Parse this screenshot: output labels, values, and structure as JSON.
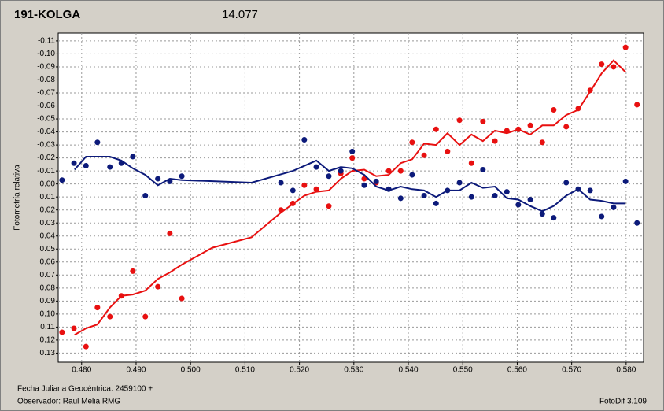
{
  "chart_data": {
    "type": "scatter",
    "title": "191-KOLGA",
    "title_color": "#e81818",
    "subtitle": "14.077",
    "subtitle_color": "#1a237e",
    "ylabel": "Fotometría relativa",
    "annotations": [
      "Fecha Juliana Geocéntrica: 2459100 +",
      "Observador: Raul Melia RMG",
      "FotoDif 3.109"
    ],
    "grid": true,
    "xlim": [
      0.4757,
      0.5832
    ],
    "ylim": [
      0.137,
      -0.116
    ],
    "xticks": [
      {
        "value": 0.48,
        "label": "0.480"
      },
      {
        "value": 0.49,
        "label": "0.490"
      },
      {
        "value": 0.5,
        "label": "0.500"
      },
      {
        "value": 0.51,
        "label": "0.510"
      },
      {
        "value": 0.52,
        "label": "0.520"
      },
      {
        "value": 0.53,
        "label": "0.530"
      },
      {
        "value": 0.54,
        "label": "0.540"
      },
      {
        "value": 0.55,
        "label": "0.550"
      },
      {
        "value": 0.56,
        "label": "0.560"
      },
      {
        "value": 0.57,
        "label": "0.570"
      },
      {
        "value": 0.58,
        "label": "0.580"
      }
    ],
    "yticks": [
      {
        "value": -0.11,
        "label": "-0.11"
      },
      {
        "value": -0.1,
        "label": "-0.10"
      },
      {
        "value": -0.09,
        "label": "-0.09"
      },
      {
        "value": -0.08,
        "label": "-0.08"
      },
      {
        "value": -0.07,
        "label": "-0.07"
      },
      {
        "value": -0.06,
        "label": "-0.06"
      },
      {
        "value": -0.05,
        "label": "-0.05"
      },
      {
        "value": -0.04,
        "label": "-0.04"
      },
      {
        "value": -0.03,
        "label": "-0.03"
      },
      {
        "value": -0.02,
        "label": "-0.02"
      },
      {
        "value": -0.01,
        "label": "-0.01"
      },
      {
        "value": 0,
        "label": "0.00"
      },
      {
        "value": 0.01,
        "label": "0.01"
      },
      {
        "value": 0.02,
        "label": "0.02"
      },
      {
        "value": 0.03,
        "label": "0.03"
      },
      {
        "value": 0.04,
        "label": "0.04"
      },
      {
        "value": 0.05,
        "label": "0.05"
      },
      {
        "value": 0.06,
        "label": "0.06"
      },
      {
        "value": 0.07,
        "label": "0.07"
      },
      {
        "value": 0.08,
        "label": "0.08"
      },
      {
        "value": 0.09,
        "label": "0.09"
      },
      {
        "value": 0.1,
        "label": "0.10"
      },
      {
        "value": 0.11,
        "label": "0.11"
      },
      {
        "value": 0.12,
        "label": "0.12"
      },
      {
        "value": 0.13,
        "label": "0.13"
      }
    ],
    "series": [
      {
        "mode": "markers",
        "color": "#e81010",
        "x": [
          0.4764,
          0.4786,
          0.4808,
          0.4829,
          0.4852,
          0.4873,
          0.4894,
          0.4917,
          0.494,
          0.4962,
          0.4984,
          0.5166,
          0.5188,
          0.5209,
          0.5231,
          0.5254,
          0.5276,
          0.5297,
          0.5319,
          0.5341,
          0.5364,
          0.5386,
          0.5407,
          0.5429,
          0.5451,
          0.5472,
          0.5494,
          0.5516,
          0.5537,
          0.5559,
          0.5581,
          0.5602,
          0.5624,
          0.5646,
          0.5667,
          0.569,
          0.5712,
          0.5734,
          0.5755,
          0.5777,
          0.5799,
          0.582
        ],
        "values": [
          0.114,
          0.111,
          0.125,
          0.095,
          0.102,
          0.086,
          0.067,
          0.102,
          0.079,
          0.038,
          0.088,
          0.02,
          0.015,
          0.001,
          0.004,
          0.017,
          -0.008,
          -0.02,
          -0.004,
          -0.001,
          -0.01,
          -0.01,
          -0.032,
          -0.022,
          -0.042,
          -0.025,
          -0.049,
          -0.016,
          -0.048,
          -0.033,
          -0.041,
          -0.042,
          -0.045,
          -0.032,
          -0.057,
          -0.044,
          -0.058,
          -0.072,
          -0.092,
          -0.09,
          -0.105,
          -0.061
        ]
      },
      {
        "mode": "line",
        "color": "#e81010",
        "x": [
          0.4787,
          0.4808,
          0.4829,
          0.4852,
          0.4873,
          0.4894,
          0.4917,
          0.494,
          0.4962,
          0.4984,
          0.504,
          0.5112,
          0.5166,
          0.5209,
          0.5231,
          0.5254,
          0.5276,
          0.5297,
          0.5319,
          0.5341,
          0.5364,
          0.5386,
          0.5407,
          0.5429,
          0.5451,
          0.5472,
          0.5494,
          0.5516,
          0.5537,
          0.5559,
          0.5581,
          0.5602,
          0.5624,
          0.5646,
          0.5667,
          0.569,
          0.5712,
          0.5734,
          0.5755,
          0.5777,
          0.5799
        ],
        "values": [
          0.116,
          0.111,
          0.108,
          0.095,
          0.086,
          0.085,
          0.082,
          0.073,
          0.068,
          0.062,
          0.049,
          0.041,
          0.022,
          0.009,
          0.006,
          0.005,
          -0.004,
          -0.01,
          -0.011,
          -0.006,
          -0.007,
          -0.016,
          -0.019,
          -0.031,
          -0.03,
          -0.039,
          -0.03,
          -0.038,
          -0.033,
          -0.041,
          -0.039,
          -0.042,
          -0.038,
          -0.045,
          -0.045,
          -0.053,
          -0.057,
          -0.071,
          -0.085,
          -0.095,
          -0.086
        ]
      },
      {
        "mode": "markers",
        "color": "#0c1a7a",
        "x": [
          0.4764,
          0.4786,
          0.4808,
          0.4829,
          0.4852,
          0.4873,
          0.4894,
          0.4917,
          0.494,
          0.4962,
          0.4984,
          0.5166,
          0.5188,
          0.5209,
          0.5231,
          0.5254,
          0.5276,
          0.5297,
          0.5319,
          0.5341,
          0.5364,
          0.5386,
          0.5407,
          0.5429,
          0.5451,
          0.5472,
          0.5494,
          0.5516,
          0.5537,
          0.5559,
          0.5581,
          0.5602,
          0.5624,
          0.5646,
          0.5667,
          0.569,
          0.5712,
          0.5734,
          0.5755,
          0.5777,
          0.5799,
          0.582
        ],
        "values": [
          -0.003,
          -0.016,
          -0.014,
          -0.032,
          -0.013,
          -0.016,
          -0.021,
          0.009,
          -0.004,
          -0.002,
          -0.006,
          -0.001,
          0.005,
          -0.034,
          -0.013,
          -0.006,
          -0.01,
          -0.025,
          0.001,
          -0.002,
          0.004,
          0.011,
          -0.007,
          0.009,
          0.015,
          0.005,
          -0.001,
          0.01,
          -0.011,
          0.009,
          0.006,
          0.016,
          0.012,
          0.023,
          0.026,
          -0.001,
          0.004,
          0.005,
          0.025,
          0.018,
          -0.002,
          0.03
        ]
      },
      {
        "mode": "line",
        "color": "#0c1a7a",
        "x": [
          0.4787,
          0.4808,
          0.4829,
          0.4852,
          0.4873,
          0.4894,
          0.4917,
          0.494,
          0.4962,
          0.4984,
          0.5112,
          0.5188,
          0.5231,
          0.5254,
          0.5276,
          0.5297,
          0.5319,
          0.5341,
          0.5364,
          0.5386,
          0.5407,
          0.5429,
          0.5451,
          0.5472,
          0.5494,
          0.5516,
          0.5537,
          0.5559,
          0.5581,
          0.5602,
          0.5624,
          0.5646,
          0.5667,
          0.569,
          0.5712,
          0.5734,
          0.5755,
          0.5777,
          0.5799
        ],
        "values": [
          -0.011,
          -0.021,
          -0.021,
          -0.021,
          -0.018,
          -0.012,
          -0.007,
          0.001,
          -0.004,
          -0.003,
          -0.001,
          -0.01,
          -0.018,
          -0.01,
          -0.013,
          -0.012,
          -0.007,
          0.002,
          0.005,
          0.002,
          0.004,
          0.005,
          0.01,
          0.005,
          0.005,
          -0.001,
          0.003,
          0.002,
          0.011,
          0.012,
          0.017,
          0.021,
          0.017,
          0.009,
          0.004,
          0.012,
          0.013,
          0.015,
          0.015
        ]
      }
    ]
  }
}
